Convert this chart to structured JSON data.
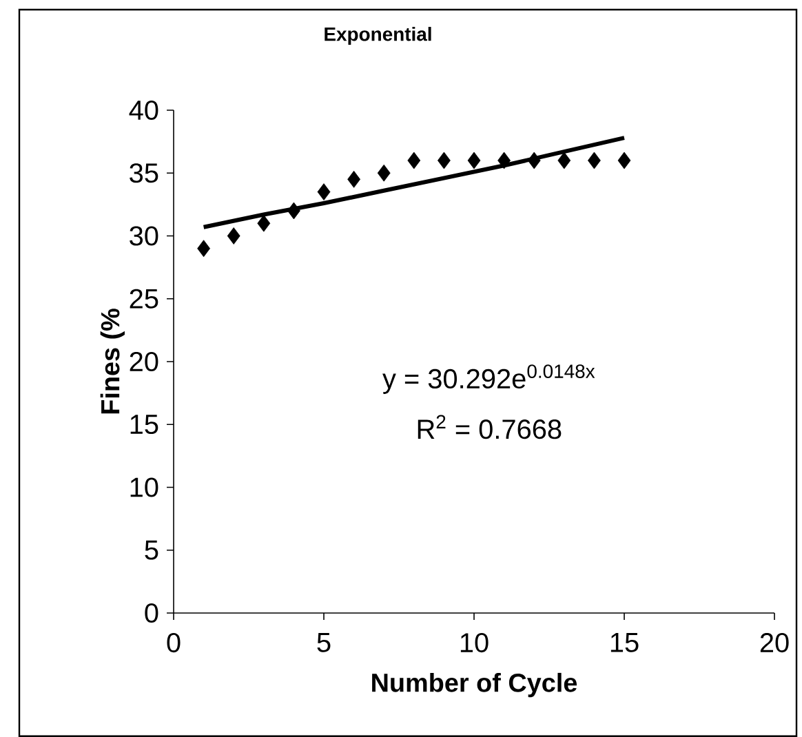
{
  "chart_data": {
    "type": "scatter",
    "title": "Exponential",
    "xlabel": "Number of Cycle",
    "ylabel": "Fines (%",
    "xlim": [
      0,
      20
    ],
    "ylim": [
      0,
      40
    ],
    "xticks": [
      0,
      5,
      10,
      15,
      20
    ],
    "yticks": [
      0,
      5,
      10,
      15,
      20,
      25,
      30,
      35,
      40
    ],
    "marker": "diamond",
    "series": [
      {
        "color": "#000000",
        "x": [
          1,
          2,
          3,
          4,
          5,
          6,
          7,
          8,
          9,
          10,
          11,
          12,
          13,
          14,
          15
        ],
        "values": [
          29,
          30,
          31,
          32,
          33.5,
          34.5,
          35,
          36,
          36,
          36,
          36,
          36,
          36,
          36,
          36
        ]
      },
      {
        "type": "line",
        "color": "#000000",
        "marker": "none",
        "line_style": "solid",
        "x": [
          1,
          3,
          5,
          7,
          9,
          11,
          13,
          15
        ],
        "values": [
          30.7,
          31.7,
          32.6,
          33.6,
          34.6,
          35.6,
          36.7,
          37.8
        ]
      }
    ],
    "annotations": [
      "y = 30.292e$^{0.0148x}$",
      "R$^{2}$ = 0.7668"
    ]
  }
}
